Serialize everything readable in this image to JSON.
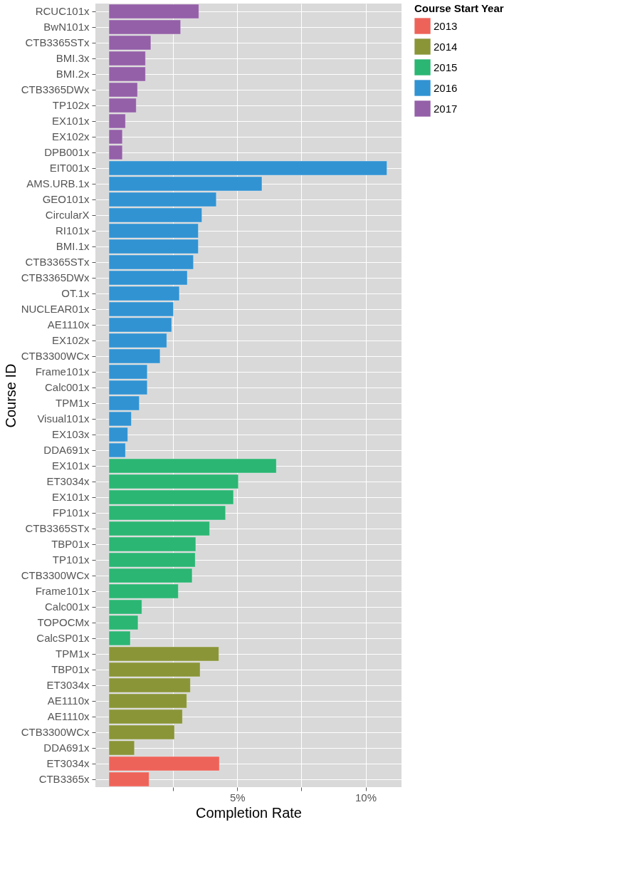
{
  "chart_data": {
    "type": "bar",
    "orientation": "horizontal",
    "xlabel": "Completion Rate",
    "ylabel": "Course ID",
    "legend_title": "Course Start Year",
    "legend": "right",
    "grid": true,
    "xlim": [
      -0.53,
      11.4
    ],
    "xticks": [
      {
        "value": 2.5,
        "label": null
      },
      {
        "value": 5,
        "label": "5%"
      },
      {
        "value": 7.5,
        "label": null
      },
      {
        "value": 10,
        "label": "10%"
      }
    ],
    "categories": [
      "RCUC101x",
      "BwN101x",
      "CTB3365STx",
      "BMI.3x",
      "BMI.2x",
      "CTB3365DWx",
      "TP102x",
      "EX101x",
      "EX102x",
      "DPB001x",
      "EIT001x",
      "AMS.URB.1x",
      "GEO101x",
      "CircularX",
      "RI101x",
      "BMI.1x",
      "CTB3365STx",
      "CTB3365DWx",
      "OT.1x",
      "NUCLEAR01x",
      "AE1110x",
      "EX102x",
      "CTB3300WCx",
      "Frame101x",
      "Calc001x",
      "TPM1x",
      "Visual101x",
      "EX103x",
      "DDA691x",
      "EX101x",
      "ET3034x",
      "EX101x",
      "FP101x",
      "CTB3365STx",
      "TBP01x",
      "TP101x",
      "CTB3300WCx",
      "Frame101x",
      "Calc001x",
      "TOPOCMx",
      "CalcSP01x",
      "TPM1x",
      "TBP01x",
      "ET3034x",
      "AE1110x",
      "AE1110x",
      "CTB3300WCx",
      "DDA691x",
      "ET3034x",
      "CTB3365x"
    ],
    "series": [
      {
        "name": "2013",
        "color": "#ee6359",
        "values": [
          null,
          null,
          null,
          null,
          null,
          null,
          null,
          null,
          null,
          null,
          null,
          null,
          null,
          null,
          null,
          null,
          null,
          null,
          null,
          null,
          null,
          null,
          null,
          null,
          null,
          null,
          null,
          null,
          null,
          null,
          null,
          null,
          null,
          null,
          null,
          null,
          null,
          null,
          null,
          null,
          null,
          null,
          null,
          null,
          null,
          null,
          null,
          null,
          4.3,
          1.56
        ]
      },
      {
        "name": "2014",
        "color": "#8a9538",
        "values": [
          null,
          null,
          null,
          null,
          null,
          null,
          null,
          null,
          null,
          null,
          null,
          null,
          null,
          null,
          null,
          null,
          null,
          null,
          null,
          null,
          null,
          null,
          null,
          null,
          null,
          null,
          null,
          null,
          null,
          null,
          null,
          null,
          null,
          null,
          null,
          null,
          null,
          null,
          null,
          null,
          null,
          4.28,
          3.55,
          3.17,
          3.03,
          2.86,
          2.55,
          0.99,
          null,
          null
        ]
      },
      {
        "name": "2015",
        "color": "#2bb673",
        "values": [
          null,
          null,
          null,
          null,
          null,
          null,
          null,
          null,
          null,
          null,
          null,
          null,
          null,
          null,
          null,
          null,
          null,
          null,
          null,
          null,
          null,
          null,
          null,
          null,
          null,
          null,
          null,
          null,
          null,
          6.52,
          5.04,
          4.85,
          4.54,
          3.92,
          3.38,
          3.36,
          3.24,
          2.7,
          1.28,
          1.13,
          0.83,
          null,
          null,
          null,
          null,
          null,
          null,
          null,
          null,
          null
        ]
      },
      {
        "name": "2016",
        "color": "#3193d2",
        "values": [
          null,
          null,
          null,
          null,
          null,
          null,
          null,
          null,
          null,
          null,
          10.83,
          5.96,
          4.18,
          3.62,
          3.48,
          3.48,
          3.29,
          3.05,
          2.74,
          2.51,
          2.44,
          2.25,
          1.99,
          1.49,
          1.49,
          1.18,
          0.87,
          0.73,
          0.64,
          null,
          null,
          null,
          null,
          null,
          null,
          null,
          null,
          null,
          null,
          null,
          null,
          null,
          null,
          null,
          null,
          null,
          null,
          null,
          null,
          null
        ]
      },
      {
        "name": "2017",
        "color": "#9460a8",
        "values": [
          3.5,
          2.79,
          1.63,
          1.42,
          1.42,
          1.11,
          1.06,
          0.64,
          0.52,
          0.52,
          null,
          null,
          null,
          null,
          null,
          null,
          null,
          null,
          null,
          null,
          null,
          null,
          null,
          null,
          null,
          null,
          null,
          null,
          null,
          null,
          null,
          null,
          null,
          null,
          null,
          null,
          null,
          null,
          null,
          null,
          null,
          null,
          null,
          null,
          null,
          null,
          null,
          null,
          null,
          null
        ]
      }
    ]
  }
}
